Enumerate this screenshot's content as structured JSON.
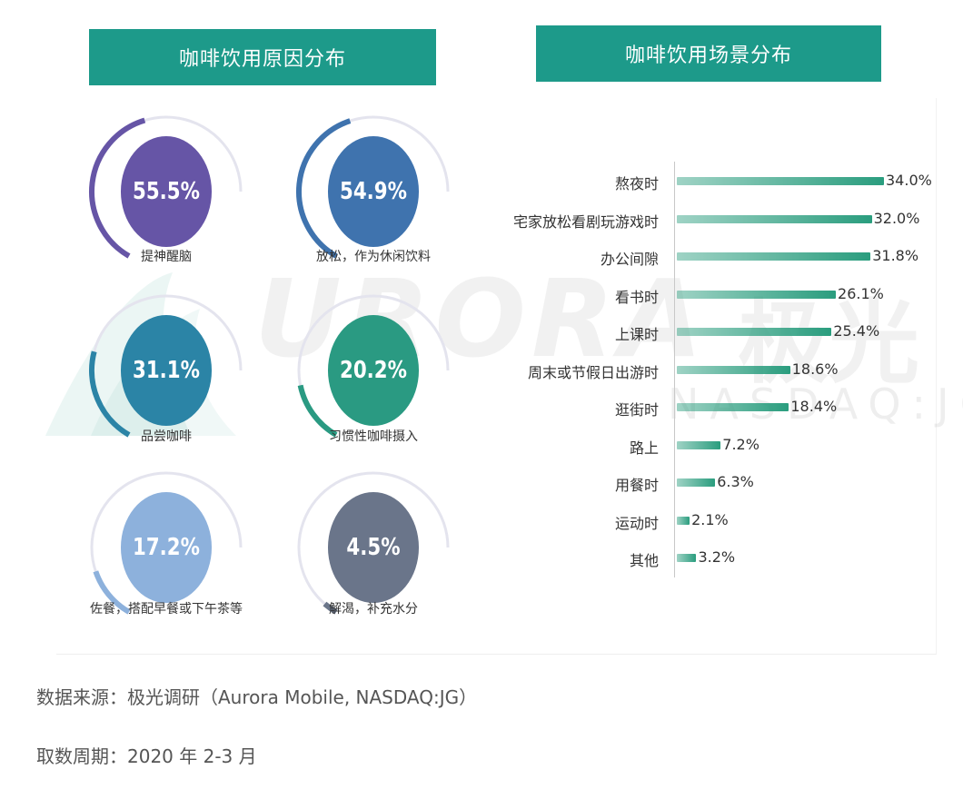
{
  "headers": {
    "left": "咖啡饮用原因分布",
    "right": "咖啡饮用场景分布"
  },
  "watermark": {
    "main": "URORA",
    "cn": "极光",
    "sub": "NASDAQ:JG"
  },
  "colors": {
    "header_bg": "#1d9a8a",
    "bar_fill": "#2a9d7e",
    "gauge_track": "#e4e4ee"
  },
  "chart_data": [
    {
      "type": "gauge",
      "title": "咖啡饮用原因分布",
      "items": [
        {
          "label": "提神醒脑",
          "value": 55.5,
          "display": "55.5%",
          "color": "#6655a6"
        },
        {
          "label": "放松，作为休闲饮料",
          "value": 54.9,
          "display": "54.9%",
          "color": "#3f73ae"
        },
        {
          "label": "品尝咖啡",
          "value": 31.1,
          "display": "31.1%",
          "color": "#2b84a6"
        },
        {
          "label": "习惯性咖啡摄入",
          "value": 20.2,
          "display": "20.2%",
          "color": "#2a9a82"
        },
        {
          "label": "佐餐，搭配早餐或下午茶等",
          "value": 17.2,
          "display": "17.2%",
          "color": "#8db1dc"
        },
        {
          "label": "解渴，补充水分",
          "value": 4.5,
          "display": "4.5%",
          "color": "#6a758a"
        }
      ]
    },
    {
      "type": "bar",
      "title": "咖啡饮用场景分布",
      "orientation": "horizontal",
      "categories": [
        "熬夜时",
        "宅家放松看剧玩游戏时",
        "办公间隙",
        "看书时",
        "上课时",
        "周末或节假日出游时",
        "逛街时",
        "路上",
        "用餐时",
        "运动时",
        "其他"
      ],
      "values": [
        34.0,
        32.0,
        31.8,
        26.1,
        25.4,
        18.6,
        18.4,
        7.2,
        6.3,
        2.1,
        3.2
      ],
      "value_labels": [
        "34.0%",
        "32.0%",
        "31.8%",
        "26.1%",
        "25.4%",
        "18.6%",
        "18.4%",
        "7.2%",
        "6.3%",
        "2.1%",
        "3.2%"
      ],
      "xlim": [
        0,
        34
      ]
    }
  ],
  "footer": {
    "source": "数据来源：极光调研（Aurora Mobile, NASDAQ:JG）",
    "period": "取数周期：2020 年 2-3 月"
  }
}
